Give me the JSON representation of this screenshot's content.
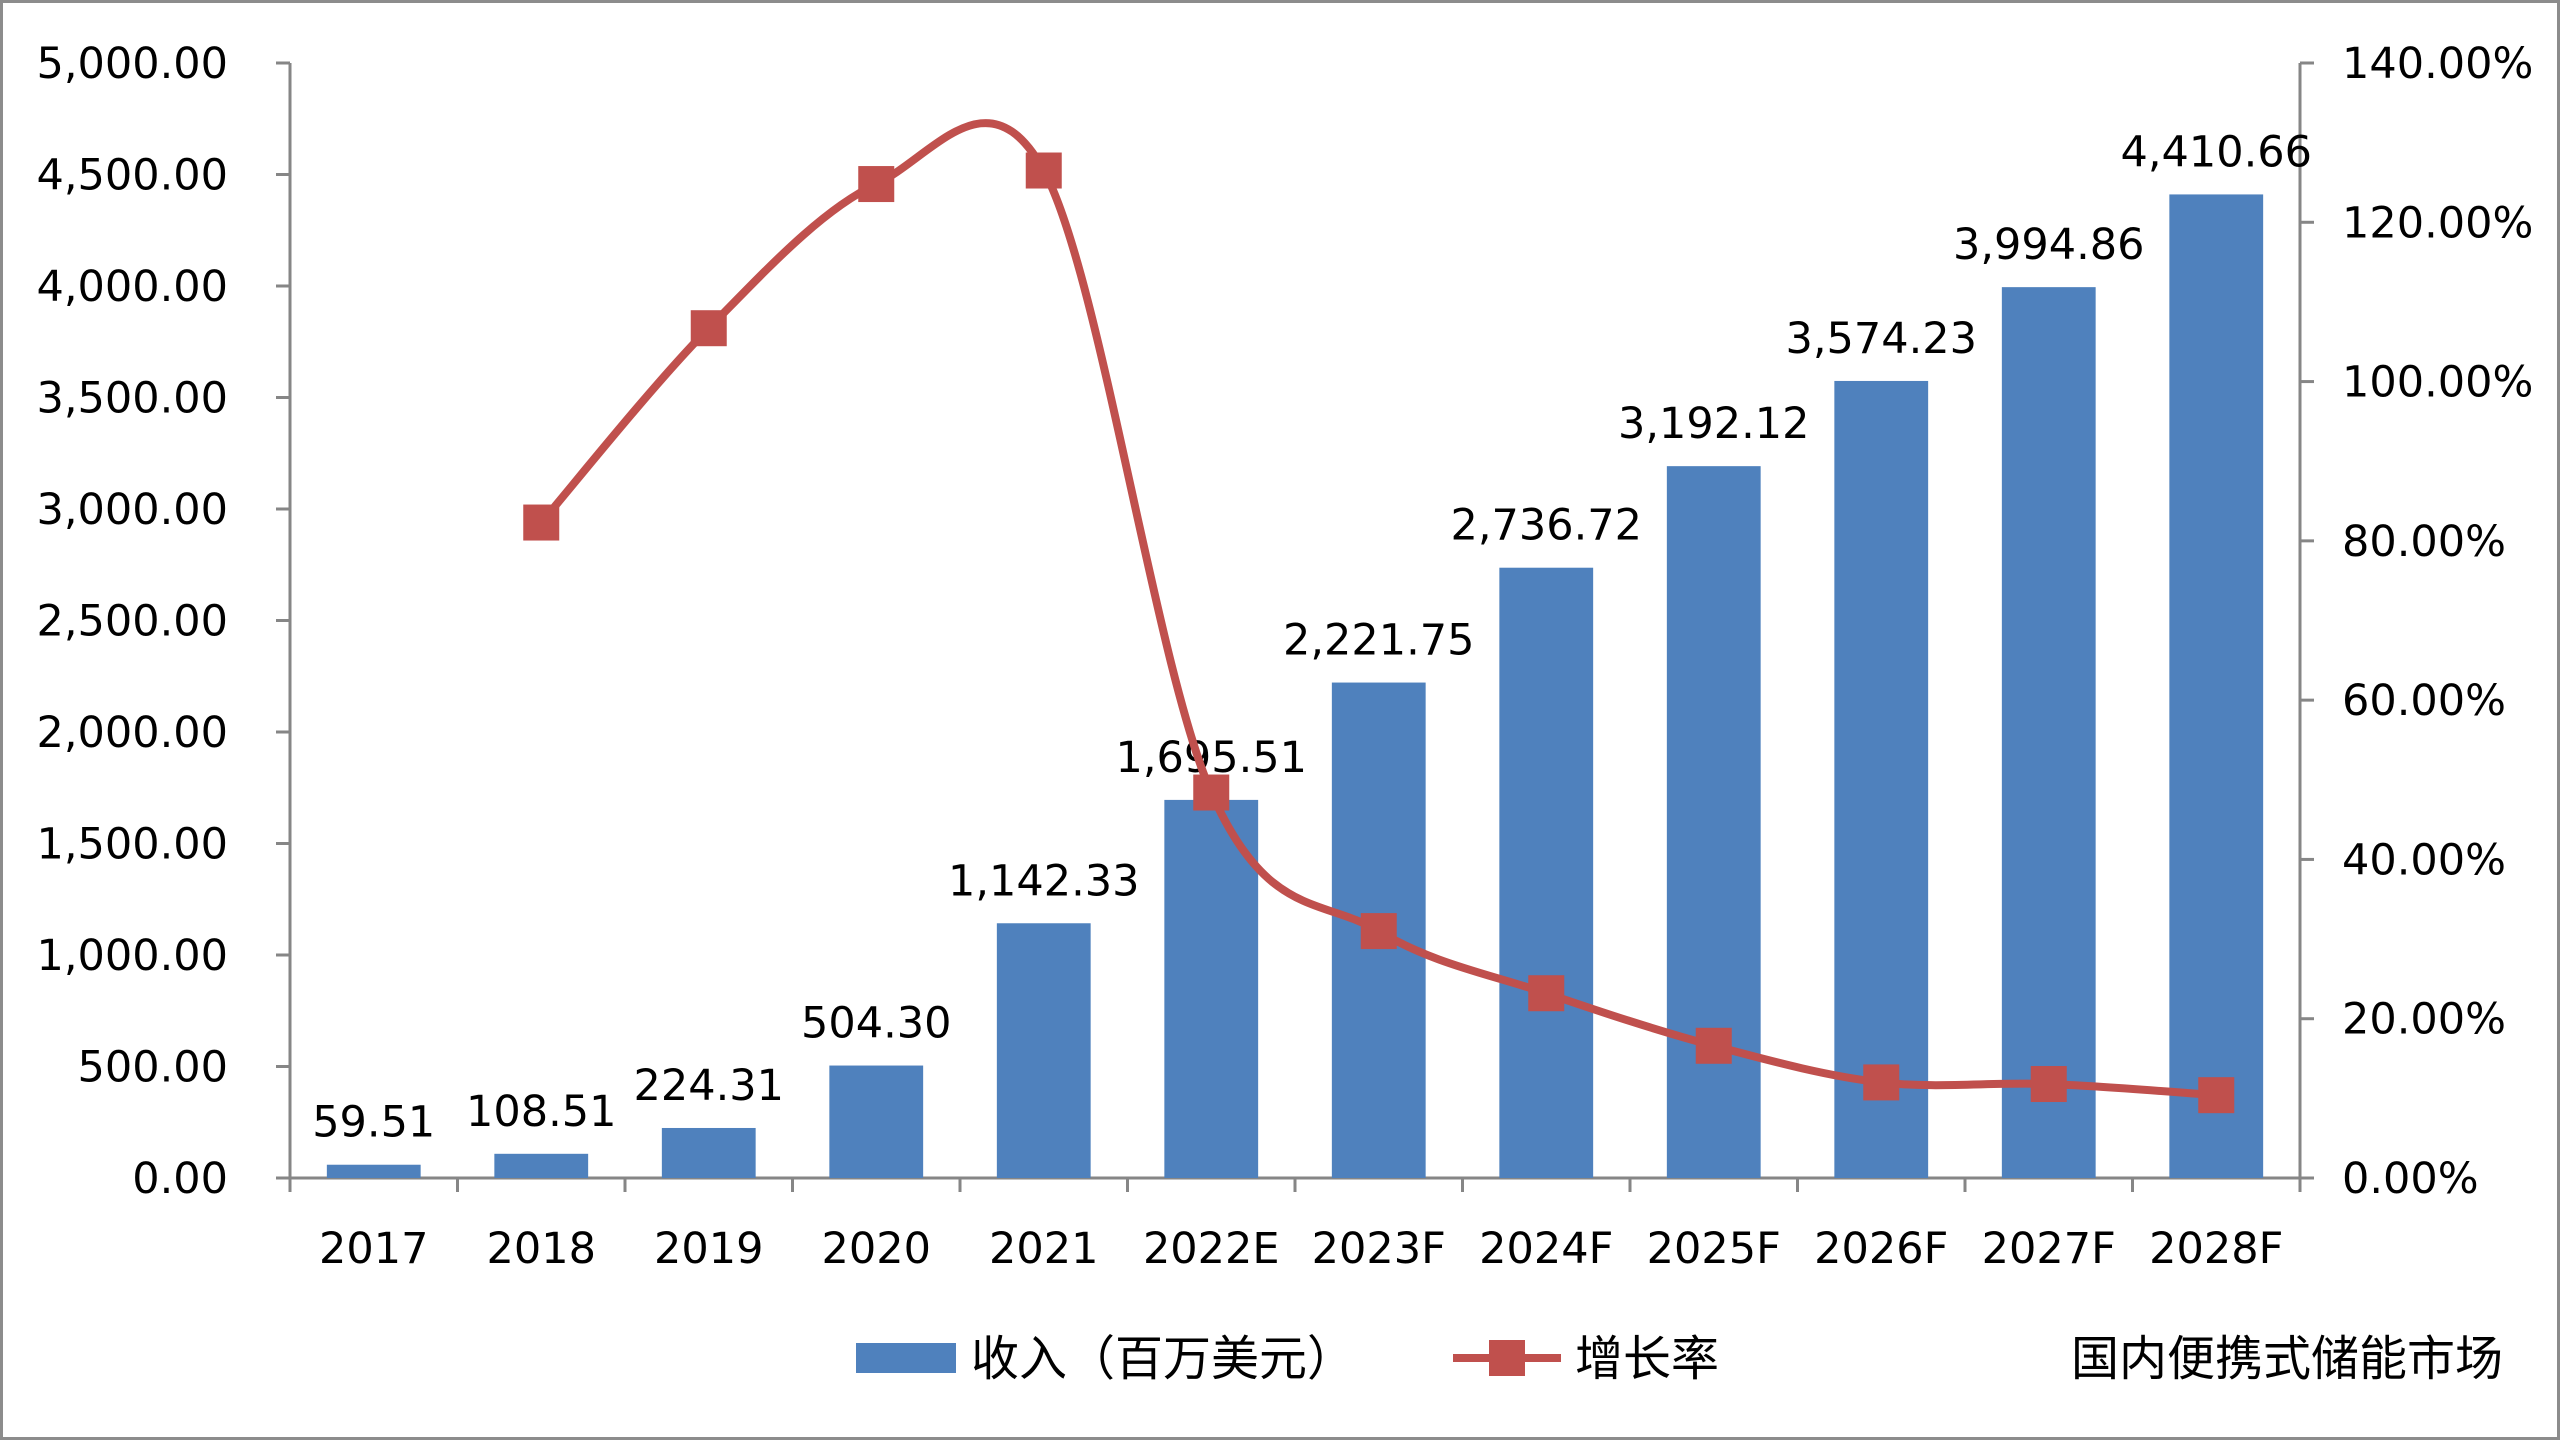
{
  "chart_data": {
    "type": "bar",
    "title": "",
    "xlabel": "",
    "ylabel": "",
    "categories": [
      "2017",
      "2018",
      "2019",
      "2020",
      "2021",
      "2022E",
      "2023F",
      "2024F",
      "2025F",
      "2026F",
      "2027F",
      "2028F"
    ],
    "series": [
      {
        "name": "收入（百万美元）",
        "type": "bar",
        "axis": "left",
        "color": "#4F81BD",
        "values": [
          59.51,
          108.51,
          224.31,
          504.3,
          1142.33,
          1695.51,
          2221.75,
          2736.72,
          3192.12,
          3574.23,
          3994.86,
          4410.66
        ],
        "labels": [
          "59.51",
          "108.51",
          "224.31",
          "504.30",
          "1,142.33",
          "1,695.51",
          "2,221.75",
          "2,736.72",
          "3,192.12",
          "3,574.23",
          "3,994.86",
          "4,410.66"
        ]
      },
      {
        "name": "增长率",
        "type": "line",
        "axis": "right",
        "color": "#C0504D",
        "smooth": true,
        "marker": "square",
        "values": [
          null,
          82.3,
          106.7,
          124.8,
          126.5,
          48.4,
          31.0,
          23.2,
          16.6,
          12.0,
          11.8,
          10.4
        ]
      }
    ],
    "ylim": [
      0,
      5000
    ],
    "y2lim": [
      0,
      140
    ],
    "yticks": [
      "0.00",
      "500.00",
      "1,000.00",
      "1,500.00",
      "2,000.00",
      "2,500.00",
      "3,000.00",
      "3,500.00",
      "4,000.00",
      "4,500.00",
      "5,000.00"
    ],
    "y2ticks": [
      "0.00%",
      "20.00%",
      "40.00%",
      "60.00%",
      "80.00%",
      "100.00%",
      "120.00%",
      "140.00%"
    ],
    "legend": {
      "placement": "bottom",
      "items": [
        "收入（百万美元）",
        "增长率"
      ]
    },
    "annotation": "国内便携式储能市场",
    "grid": false
  }
}
